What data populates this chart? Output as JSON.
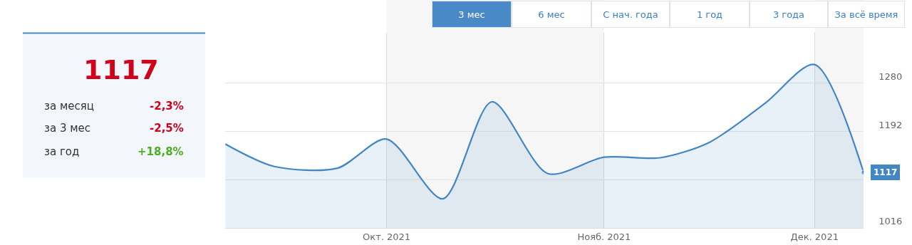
{
  "chart_data": {
    "type": "area",
    "x": [
      "2021-09-08",
      "2021-09-15",
      "2021-09-24",
      "2021-10-01",
      "2021-10-09",
      "2021-10-16",
      "2021-10-24",
      "2021-11-01",
      "2021-11-09",
      "2021-11-16",
      "2021-11-24",
      "2021-12-01",
      "2021-12-08"
    ],
    "series": [
      {
        "color": "#4286c4",
        "values": [
          1169,
          1128,
          1125,
          1178,
          1069,
          1246,
          1115,
          1145,
          1144,
          1172,
          1244,
          1314,
          1117
        ],
        "value_labels": [
          null,
          null,
          null,
          null,
          null,
          null,
          null,
          null,
          null,
          null,
          null,
          null,
          "1117"
        ]
      }
    ],
    "xlim": [
      "2021-09-08",
      "2021-12-08"
    ],
    "xticks": [
      {
        "value": "2021-10-01",
        "label": "Окт. 2021"
      },
      {
        "value": "2021-11-01",
        "label": "Нояб. 2021"
      },
      {
        "value": "2021-12-01",
        "label": "Дек. 2021"
      }
    ],
    "ylim": [
      1016,
      1372
    ],
    "yticks": [
      1016,
      {
        "value": 1104,
        "label": null
      },
      1192,
      1280
    ],
    "grid": true,
    "bands": [
      {
        "axis": "x",
        "from": "2021-10-01",
        "to": "2021-11-01",
        "color": "#f6f6f6"
      },
      {
        "axis": "x",
        "from": "2021-12-01",
        "to": "2021-12-08",
        "color": "#f6f6f6"
      }
    ],
    "annotations": [
      "1117",
      "за месяц",
      "-2,3%",
      "за 3 мес",
      "-2,5%",
      "за год",
      "+18,8%",
      "3 мес",
      "6 мес",
      "С нач. года",
      "1 год",
      "3 года",
      "За всё время"
    ]
  }
}
